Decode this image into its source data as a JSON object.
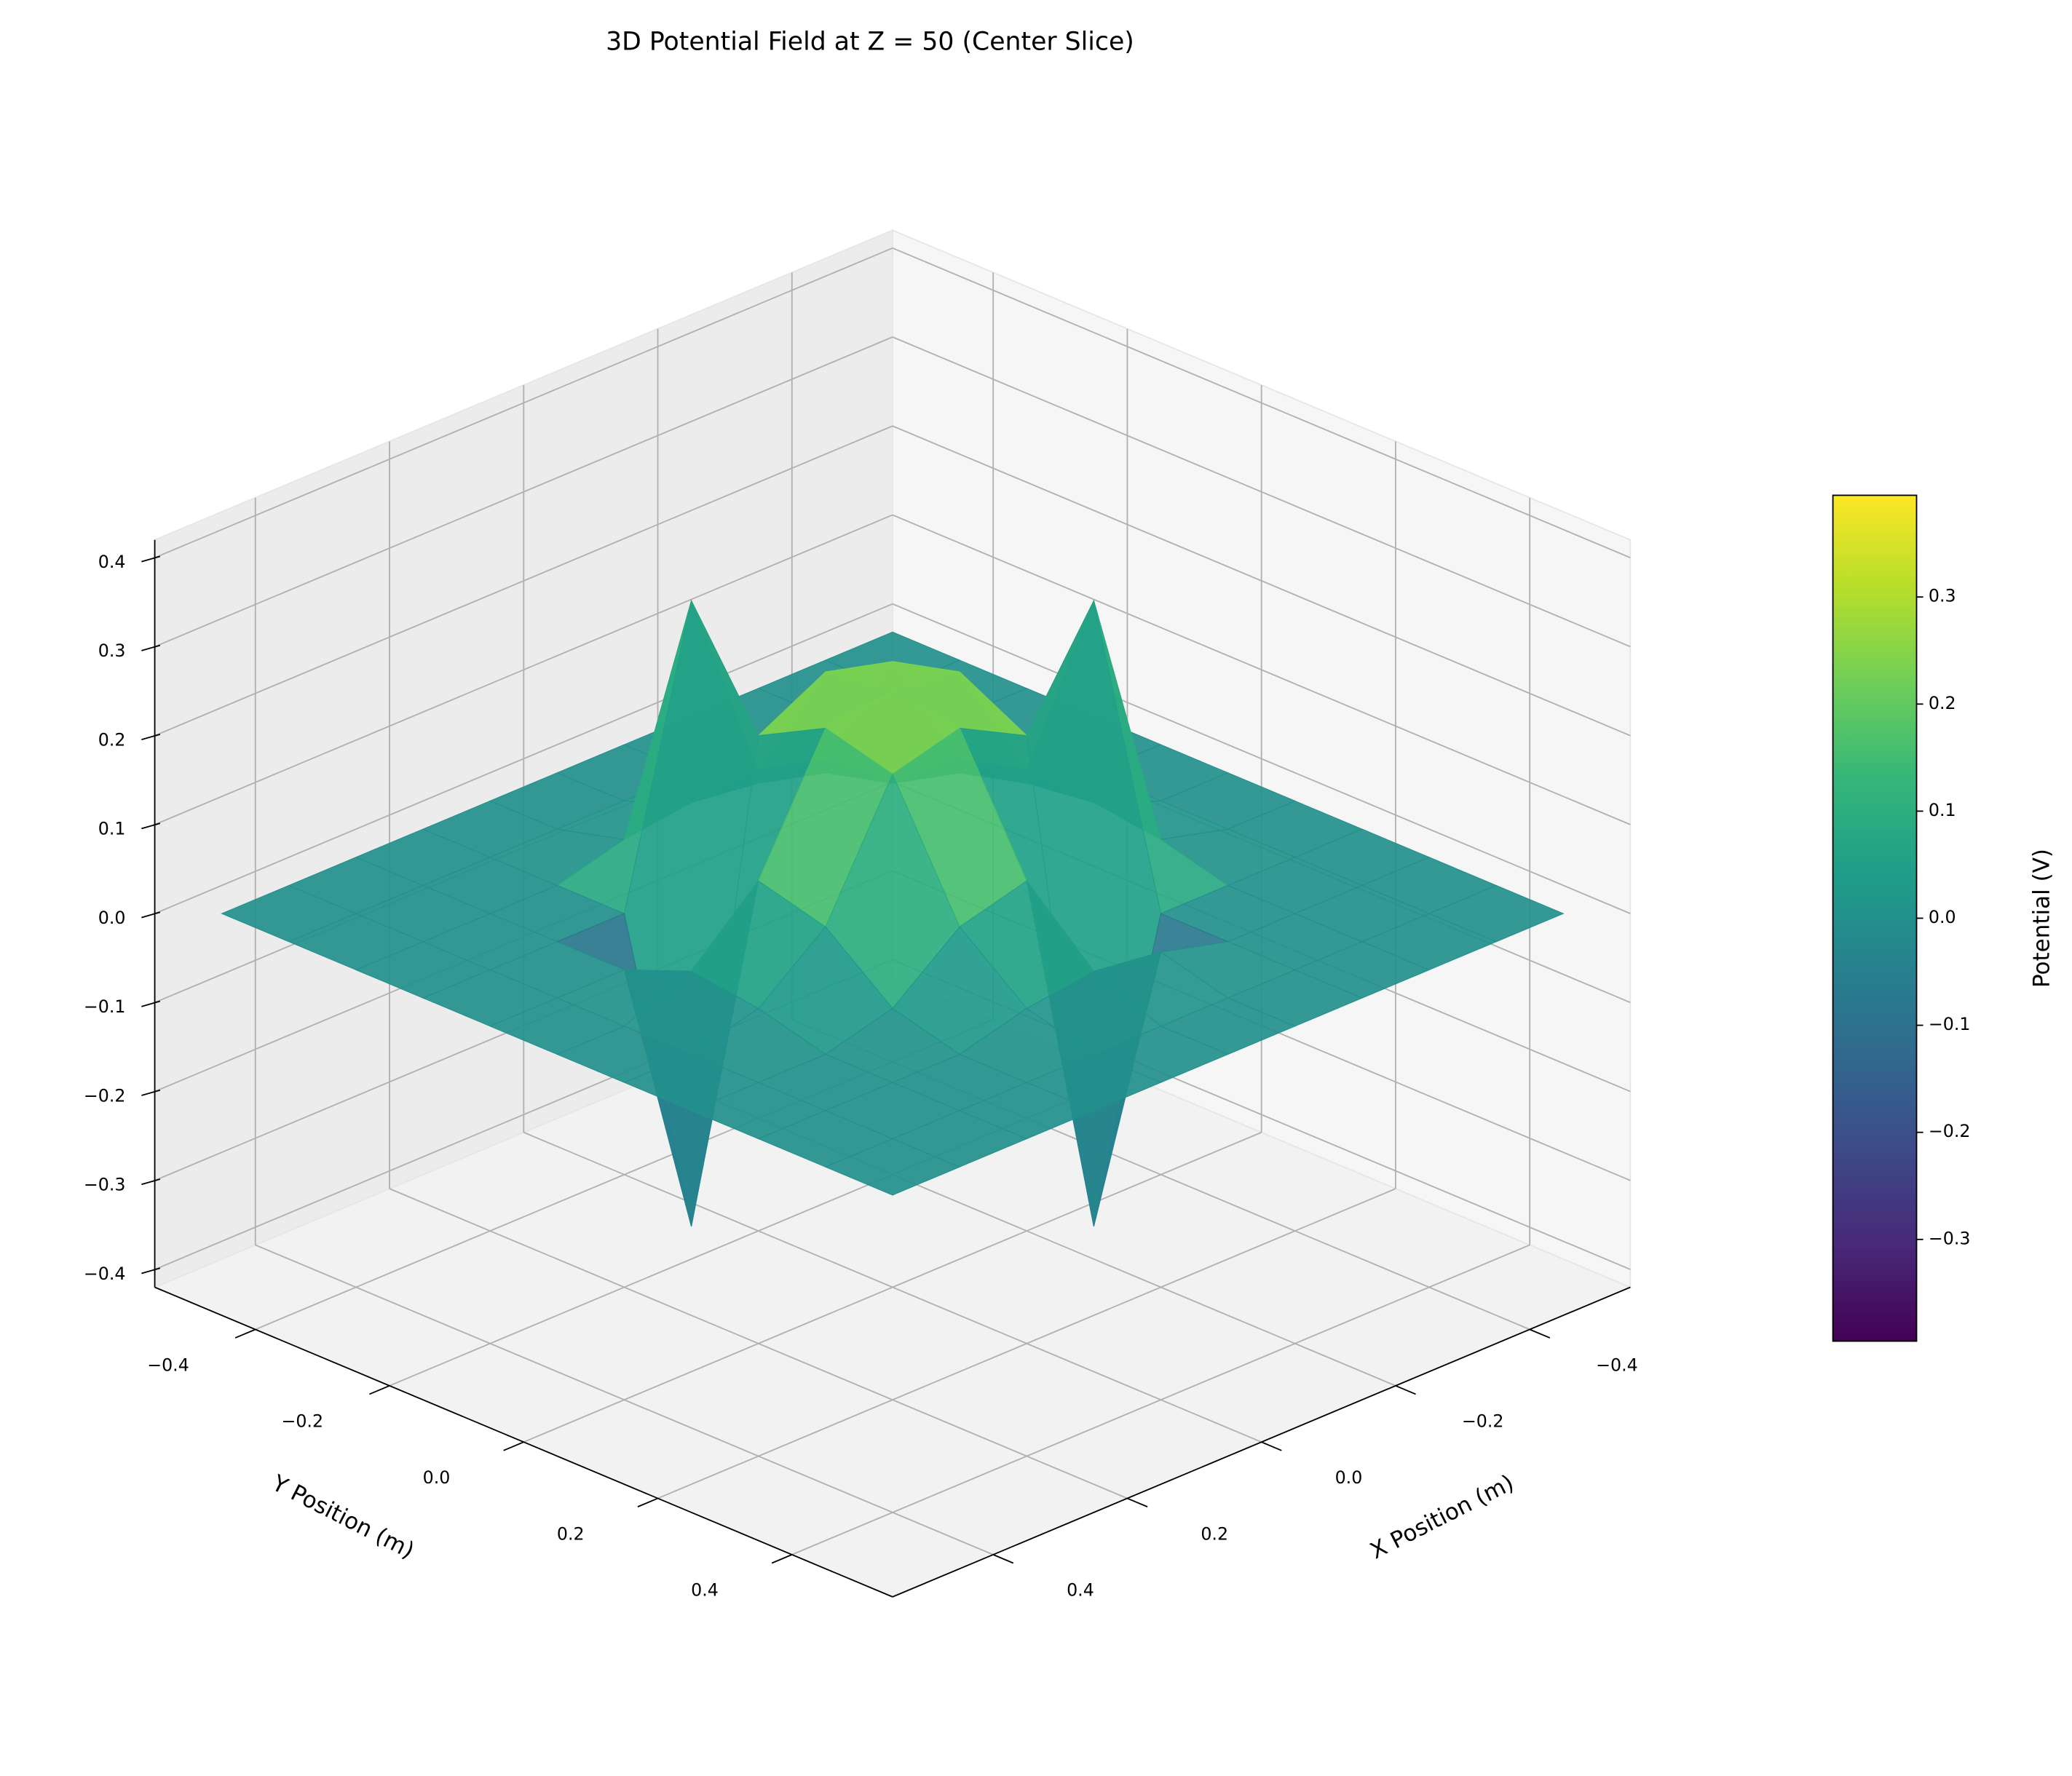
{
  "chart_data": {
    "type": "surface",
    "title": "3D Potential Field at Z = 50 (Center Slice)",
    "xlabel": "X Position (m)",
    "ylabel": "Y Position (m)",
    "x": [
      -0.5,
      -0.4,
      -0.3,
      -0.2,
      -0.1,
      0,
      0.1,
      0.2,
      0.3,
      0.4,
      0.5
    ],
    "y": [
      -0.5,
      -0.4,
      -0.3,
      -0.2,
      -0.1,
      0,
      0.1,
      0.2,
      0.3,
      0.4,
      0.5
    ],
    "z": [
      [
        0,
        0,
        0,
        0,
        0,
        0,
        0,
        0,
        0,
        0,
        0
      ],
      [
        0,
        0,
        0,
        0,
        0,
        0,
        0,
        0,
        0,
        0,
        0
      ],
      [
        0,
        0,
        0,
        0,
        0.02,
        0.03,
        0.02,
        0,
        0,
        0,
        0
      ],
      [
        0,
        0,
        0,
        0.02,
        0.08,
        0.1,
        0.32,
        0,
        0,
        0,
        0
      ],
      [
        0,
        0,
        0.02,
        0.08,
        0.22,
        0.24,
        0.2,
        -0.32,
        0,
        0,
        0
      ],
      [
        0,
        0,
        0.03,
        0.1,
        0.24,
        0.25,
        0.24,
        0.1,
        0.03,
        0,
        0
      ],
      [
        0,
        0,
        0.02,
        0.32,
        0.2,
        0.24,
        0.22,
        0.08,
        0.02,
        0,
        0
      ],
      [
        0,
        0,
        0,
        0,
        -0.32,
        0.1,
        0.08,
        0.02,
        0,
        0,
        0
      ],
      [
        0,
        0,
        0,
        0,
        0.02,
        0.03,
        0.02,
        0,
        0,
        0,
        0
      ],
      [
        0,
        0,
        0,
        0,
        0,
        0,
        0,
        0,
        0,
        0,
        0
      ],
      [
        0,
        0,
        0,
        0,
        0,
        0,
        0,
        0,
        0,
        0,
        0
      ]
    ],
    "xlim": [
      -0.55,
      0.55
    ],
    "ylim": [
      -0.55,
      0.55
    ],
    "zlim": [
      -0.42,
      0.42
    ],
    "xticks": [
      {
        "value": -0.4,
        "label": "−0.4"
      },
      {
        "value": -0.2,
        "label": "−0.2"
      },
      {
        "value": 0,
        "label": "0.0"
      },
      0.2,
      0.4
    ],
    "yticks": [
      {
        "value": -0.4,
        "label": "−0.4"
      },
      {
        "value": -0.2,
        "label": "−0.2"
      },
      {
        "value": 0,
        "label": "0.0"
      },
      0.2,
      0.4
    ],
    "zticks": [
      {
        "value": -0.4,
        "label": "−0.4"
      },
      {
        "value": -0.3,
        "label": "−0.3"
      },
      {
        "value": -0.2,
        "label": "−0.2"
      },
      {
        "value": -0.1,
        "label": "−0.1"
      },
      {
        "value": 0,
        "label": "0.0"
      },
      0.1,
      0.2,
      0.3,
      0.4
    ],
    "colormap": "viridis",
    "grid": true,
    "colorbar": {
      "label": "Potential (V)",
      "lim": [
        -0.395,
        0.395
      ],
      "ticks": [
        {
          "value": -0.3,
          "label": "−0.3"
        },
        {
          "value": -0.2,
          "label": "−0.2"
        },
        {
          "value": -0.1,
          "label": "−0.1"
        },
        {
          "value": 0,
          "label": "0.0"
        },
        0.1,
        0.2,
        0.3
      ]
    }
  }
}
